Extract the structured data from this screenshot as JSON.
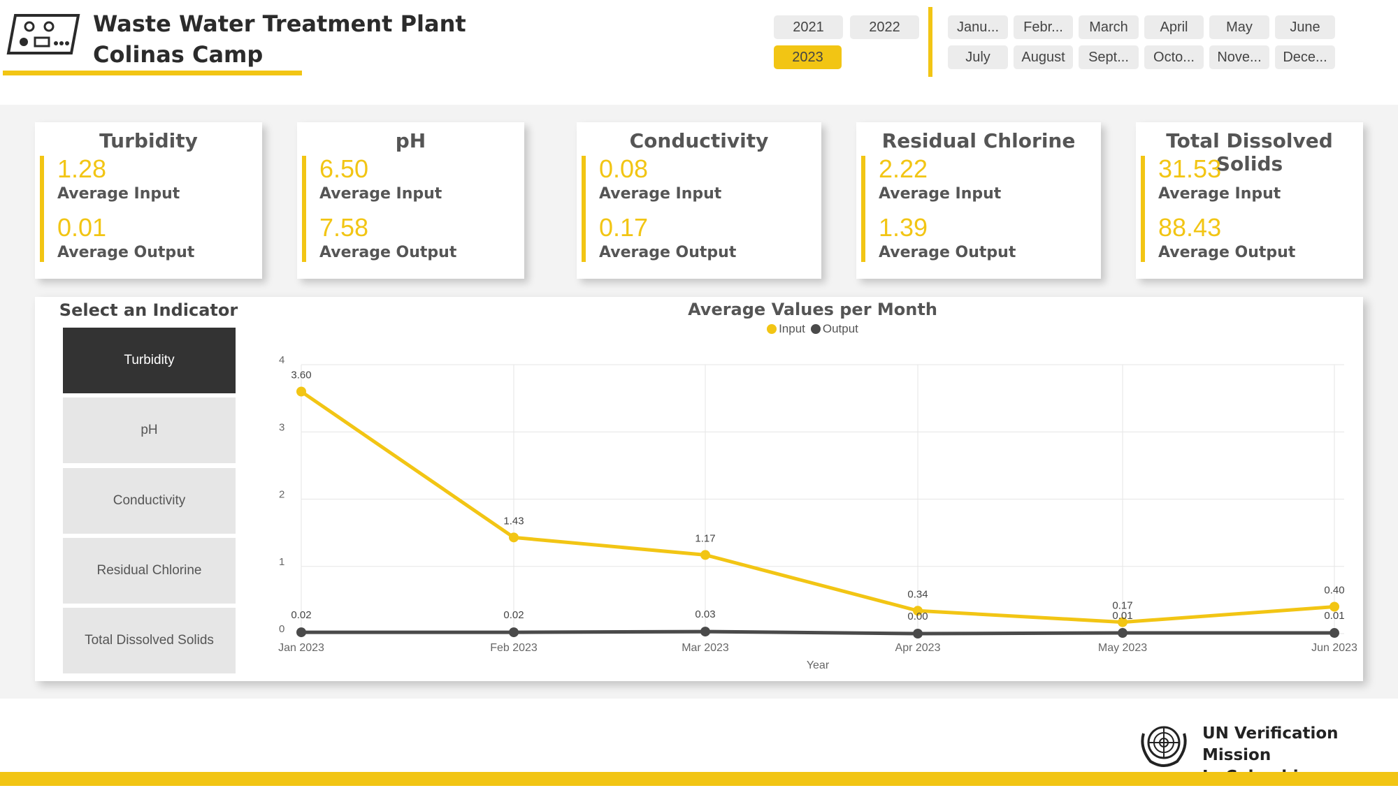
{
  "header": {
    "title_line1": "Waste Water Treatment Plant",
    "title_line2": "Colinas Camp",
    "logo_icon": "treatment-plant-icon"
  },
  "year_filter": {
    "years": [
      "2021",
      "2022",
      "2023"
    ],
    "selected": "2023"
  },
  "month_filter": {
    "months": [
      "Janu...",
      "Febr...",
      "March",
      "April",
      "May",
      "June",
      "July",
      "August",
      "Sept...",
      "Octo...",
      "Nove...",
      "Dece..."
    ]
  },
  "kpis": [
    {
      "title": "Turbidity",
      "avg_input": "1.28",
      "avg_output": "0.01",
      "input_label": "Average Input",
      "output_label": "Average Output"
    },
    {
      "title": "pH",
      "avg_input": "6.50",
      "avg_output": "7.58",
      "input_label": "Average Input",
      "output_label": "Average Output"
    },
    {
      "title": "Conductivity",
      "avg_input": "0.08",
      "avg_output": "0.17",
      "input_label": "Average Input",
      "output_label": "Average Output"
    },
    {
      "title": "Residual Chlorine",
      "avg_input": "2.22",
      "avg_output": "1.39",
      "input_label": "Average Input",
      "output_label": "Average Output"
    },
    {
      "title": "Total Dissolved Solids",
      "avg_input": "31.53",
      "avg_output": "88.43",
      "input_label": "Average Input",
      "output_label": "Average Output"
    }
  ],
  "indicator_selector": {
    "title": "Select an Indicator",
    "options": [
      "Turbidity",
      "pH",
      "Conductivity",
      "Residual Chlorine",
      "Total Dissolved Solids"
    ],
    "selected": "Turbidity"
  },
  "chart_data": {
    "type": "line",
    "title": "Average Values per Month",
    "xlabel": "Year",
    "ylabel": "",
    "categories": [
      "Jan 2023",
      "Feb 2023",
      "Mar 2023",
      "Apr 2023",
      "May 2023",
      "Jun 2023"
    ],
    "series": [
      {
        "name": "Input",
        "values": [
          3.6,
          1.43,
          1.17,
          0.34,
          0.17,
          0.4
        ],
        "labels": [
          "3.60",
          "1.43",
          "1.17",
          "0.34",
          "0.17",
          "0.40"
        ],
        "color": "#f2c514"
      },
      {
        "name": "Output",
        "values": [
          0.02,
          0.02,
          0.03,
          0.0,
          0.01,
          0.01
        ],
        "labels": [
          "0.02",
          "0.02",
          "0.03",
          "0.00",
          "0.01",
          "0.01"
        ],
        "color": "#4a4a4a"
      }
    ],
    "ylim": [
      0,
      4
    ],
    "yticks": [
      "0",
      "1",
      "2",
      "3",
      "4"
    ],
    "grid": true,
    "legend_position": "top-center"
  },
  "footer": {
    "org_line1": "UN Verification Mission",
    "org_line2": "In Colombia",
    "logo_icon": "un-emblem-icon"
  },
  "colors": {
    "accent": "#f2c514",
    "dark": "#333333",
    "output_line": "#4a4a4a"
  }
}
